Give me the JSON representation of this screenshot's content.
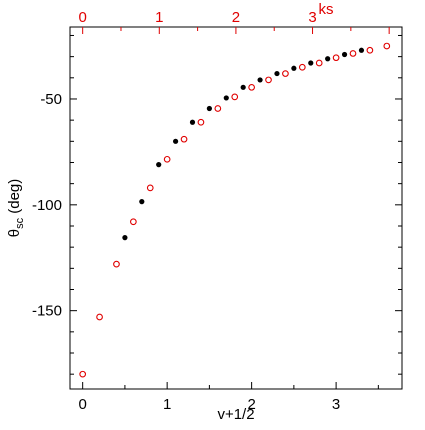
{
  "chart_data": {
    "type": "scatter",
    "xlabel": "v+1/2",
    "ylabel_main": "θ",
    "ylabel_sub": "sc",
    "ylabel_unit": " (deg)",
    "x2label": "ks",
    "xlim": [
      -0.15,
      3.78
    ],
    "ylim": [
      -187,
      -16
    ],
    "x2_scale": 0.907,
    "xticks": [
      {
        "value": 0,
        "label": "0"
      },
      {
        "value": 1,
        "label": "1"
      },
      {
        "value": 2,
        "label": "2"
      },
      {
        "value": 3,
        "label": "3"
      }
    ],
    "x2ticks": [
      {
        "value": 0,
        "label": "0"
      },
      {
        "value": 1,
        "label": "1"
      },
      {
        "value": 2,
        "label": "2"
      },
      {
        "value": 3,
        "label": "3"
      }
    ],
    "yticks": [
      {
        "value": -50,
        "label": "-50"
      },
      {
        "value": -100,
        "label": "-100"
      },
      {
        "value": -150,
        "label": "-150"
      }
    ],
    "series": [
      {
        "marker": "filled-circle",
        "color": "#000000",
        "x": [
          0.5,
          0.7,
          0.9,
          1.1,
          1.3,
          1.5,
          1.7,
          1.9,
          2.1,
          2.3,
          2.5,
          2.7,
          2.9,
          3.1,
          3.3
        ],
        "y": [
          -115.5,
          -98.5,
          -81,
          -70,
          -61,
          -54.5,
          -49.5,
          -44.5,
          -41,
          -38,
          -35.5,
          -33,
          -31,
          -29,
          -27
        ]
      },
      {
        "marker": "open-circle",
        "color": "#e00000",
        "x": [
          0.0,
          0.2,
          0.4,
          0.6,
          0.8,
          1.0,
          1.2,
          1.4,
          1.6,
          1.8,
          2.0,
          2.2,
          2.4,
          2.6,
          2.8,
          3.0,
          3.2,
          3.4,
          3.6
        ],
        "y": [
          -180,
          -153,
          -128,
          -108,
          -92,
          -78.5,
          -69,
          -61,
          -54.5,
          -49,
          -44.5,
          -41,
          -38,
          -35,
          -33,
          -30.5,
          -28.5,
          -27,
          -25
        ]
      }
    ],
    "colors": {
      "axis": "#000000",
      "top_axis": "#e00000"
    }
  }
}
